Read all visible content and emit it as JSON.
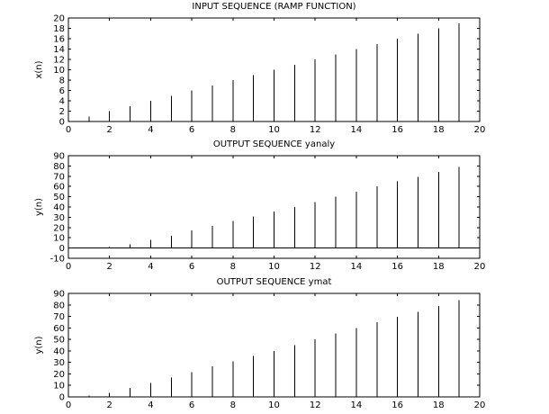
{
  "chart_data": [
    {
      "type": "stem",
      "title": "INPUT SEQUENCE (RAMP FUNCTION)",
      "xlabel": "",
      "ylabel": "x(n)",
      "xlim": [
        0,
        20
      ],
      "ylim": [
        0,
        20
      ],
      "xticks": [
        "0",
        "2",
        "4",
        "6",
        "8",
        "10",
        "12",
        "14",
        "16",
        "18",
        "20"
      ],
      "yticks": [
        "0",
        "2",
        "4",
        "6",
        "8",
        "10",
        "12",
        "14",
        "16",
        "18",
        "20"
      ],
      "x": [
        0,
        1,
        2,
        3,
        4,
        5,
        6,
        7,
        8,
        9,
        10,
        11,
        12,
        13,
        14,
        15,
        16,
        17,
        18,
        19,
        20
      ],
      "values": [
        0,
        1,
        2,
        3,
        4,
        5,
        6,
        7,
        8,
        9,
        10,
        11,
        12,
        13,
        14,
        15,
        16,
        17,
        18,
        19,
        20
      ]
    },
    {
      "type": "stem",
      "title": "OUTPUT SEQUENCE yanaly",
      "xlabel": "",
      "ylabel": "y(n)",
      "xlim": [
        0,
        20
      ],
      "ylim": [
        -10,
        90
      ],
      "xticks": [
        "0",
        "2",
        "4",
        "6",
        "8",
        "10",
        "12",
        "14",
        "16",
        "18",
        "20"
      ],
      "yticks": [
        "-10",
        "0",
        "10",
        "20",
        "30",
        "40",
        "50",
        "60",
        "70",
        "80",
        "90"
      ],
      "x": [
        0,
        1,
        2,
        3,
        4,
        5,
        6,
        7,
        8,
        9,
        10,
        11,
        12,
        13,
        14,
        15,
        16,
        17,
        18,
        19,
        20
      ],
      "values": [
        0,
        0,
        1,
        3.5,
        8,
        12,
        17,
        21.5,
        26.5,
        31,
        35.5,
        40,
        45,
        50,
        55,
        60,
        65,
        69.5,
        74,
        79,
        84
      ]
    },
    {
      "type": "stem",
      "title": "OUTPUT SEQUENCE ymat",
      "xlabel": "",
      "ylabel": "y(n)",
      "xlim": [
        0,
        20
      ],
      "ylim": [
        0,
        90
      ],
      "xticks": [
        "0",
        "2",
        "4",
        "6",
        "8",
        "10",
        "12",
        "14",
        "16",
        "18",
        "20"
      ],
      "yticks": [
        "0",
        "10",
        "20",
        "30",
        "40",
        "50",
        "60",
        "70",
        "80",
        "90"
      ],
      "x": [
        0,
        1,
        2,
        3,
        4,
        5,
        6,
        7,
        8,
        9,
        10,
        11,
        12,
        13,
        14,
        15,
        16,
        17,
        18,
        19,
        20
      ],
      "values": [
        0,
        1,
        3.5,
        8,
        12,
        17,
        21.5,
        26.5,
        31,
        35.5,
        40,
        45,
        50,
        55,
        60,
        65,
        69.5,
        74,
        79,
        84,
        88
      ]
    }
  ]
}
